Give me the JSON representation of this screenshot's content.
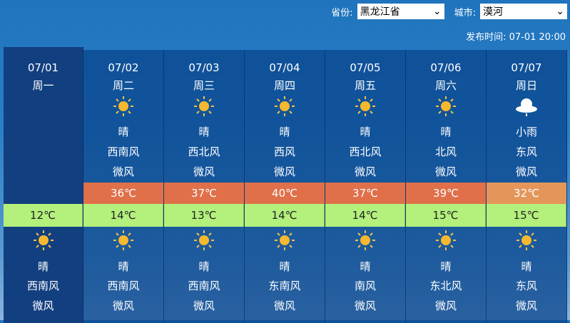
{
  "header": {
    "province_label": "省份:",
    "province": "黑龙江省",
    "city_label": "城市:",
    "city": "漠河",
    "publish_label": "发布时间:",
    "publish_time": "07-01 20:00"
  },
  "colors": {
    "high": "#e0704a",
    "high_last": "#e4965a",
    "low": "#b4f07c"
  },
  "days": [
    {
      "date": "07/01",
      "weekday": "周一",
      "day": null,
      "high": "",
      "low": "12℃",
      "night": {
        "icon": "sun-icon",
        "weather": "晴",
        "wind_dir": "西南风",
        "wind": "微风"
      }
    },
    {
      "date": "07/02",
      "weekday": "周二",
      "day": {
        "icon": "sun-icon",
        "weather": "晴",
        "wind_dir": "西南风",
        "wind": "微风"
      },
      "high": "36℃",
      "low": "14℃",
      "night": {
        "icon": "sun-icon",
        "weather": "晴",
        "wind_dir": "西南风",
        "wind": "微风"
      }
    },
    {
      "date": "07/03",
      "weekday": "周三",
      "day": {
        "icon": "sun-icon",
        "weather": "晴",
        "wind_dir": "西北风",
        "wind": "微风"
      },
      "high": "37℃",
      "low": "13℃",
      "night": {
        "icon": "sun-icon",
        "weather": "晴",
        "wind_dir": "西南风",
        "wind": "微风"
      }
    },
    {
      "date": "07/04",
      "weekday": "周四",
      "day": {
        "icon": "sun-icon",
        "weather": "晴",
        "wind_dir": "西风",
        "wind": "微风"
      },
      "high": "40℃",
      "low": "14℃",
      "night": {
        "icon": "sun-icon",
        "weather": "晴",
        "wind_dir": "东南风",
        "wind": "微风"
      }
    },
    {
      "date": "07/05",
      "weekday": "周五",
      "day": {
        "icon": "sun-icon",
        "weather": "晴",
        "wind_dir": "西北风",
        "wind": "微风"
      },
      "high": "37℃",
      "low": "14℃",
      "night": {
        "icon": "sun-icon",
        "weather": "晴",
        "wind_dir": "南风",
        "wind": "微风"
      }
    },
    {
      "date": "07/06",
      "weekday": "周六",
      "day": {
        "icon": "sun-icon",
        "weather": "晴",
        "wind_dir": "北风",
        "wind": "微风"
      },
      "high": "39℃",
      "low": "15℃",
      "night": {
        "icon": "sun-icon",
        "weather": "晴",
        "wind_dir": "东北风",
        "wind": "微风"
      }
    },
    {
      "date": "07/07",
      "weekday": "周日",
      "day": {
        "icon": "light-rain-icon",
        "weather": "小雨",
        "wind_dir": "东风",
        "wind": "微风"
      },
      "high": "32℃",
      "low": "15℃",
      "night": {
        "icon": "sun-icon",
        "weather": "晴",
        "wind_dir": "东风",
        "wind": "微风"
      }
    }
  ]
}
